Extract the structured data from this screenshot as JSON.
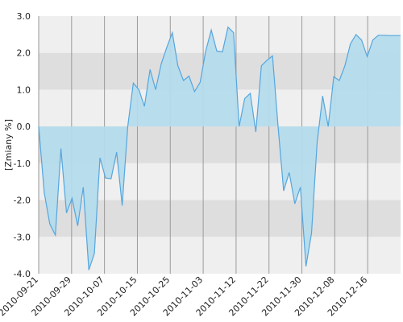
{
  "chart_data": {
    "type": "area",
    "ylabel": "[Zmiany %]",
    "ylim": [
      -4.0,
      3.0
    ],
    "y_ticks": [
      "3.0",
      "2.0",
      "1.0",
      "0.0",
      "-1.0",
      "-2.0",
      "-3.0",
      "-4.0"
    ],
    "x_ticks": [
      "2010-09-21",
      "2010-09-29",
      "2010-10-07",
      "2010-10-15",
      "2010-10-25",
      "2010-11-03",
      "2010-11-12",
      "2010-11-22",
      "2010-11-30",
      "2010-12-08",
      "2010-12-16"
    ],
    "grid": true,
    "series": [
      {
        "values": [
          0.0,
          -1.8,
          -2.65,
          -2.95,
          -0.6,
          -2.35,
          -1.95,
          -2.7,
          -1.65,
          -3.9,
          -3.45,
          -0.85,
          -1.4,
          -1.42,
          -0.7,
          -2.15,
          0.0,
          1.18,
          1.0,
          0.55,
          1.55,
          1.0,
          1.7,
          2.15,
          2.55,
          1.65,
          1.25,
          1.37,
          0.95,
          1.2,
          2.05,
          2.62,
          2.05,
          2.03,
          2.7,
          2.55,
          0.0,
          0.76,
          0.9,
          -0.15,
          1.65,
          1.8,
          1.92,
          0.0,
          -1.75,
          -1.25,
          -2.1,
          -1.65,
          -3.8,
          -2.9,
          -0.45,
          0.83,
          0.0,
          1.35,
          1.25,
          1.65,
          2.25,
          2.5,
          2.35,
          1.9,
          2.35,
          2.48,
          2.48,
          2.47,
          2.47,
          2.47
        ]
      }
    ],
    "colors": {
      "line": "#55a6de",
      "fill": "#b4dbec",
      "band_dark": "#dedede",
      "band_light": "#efefef",
      "grid": "#9a9a9a"
    }
  }
}
